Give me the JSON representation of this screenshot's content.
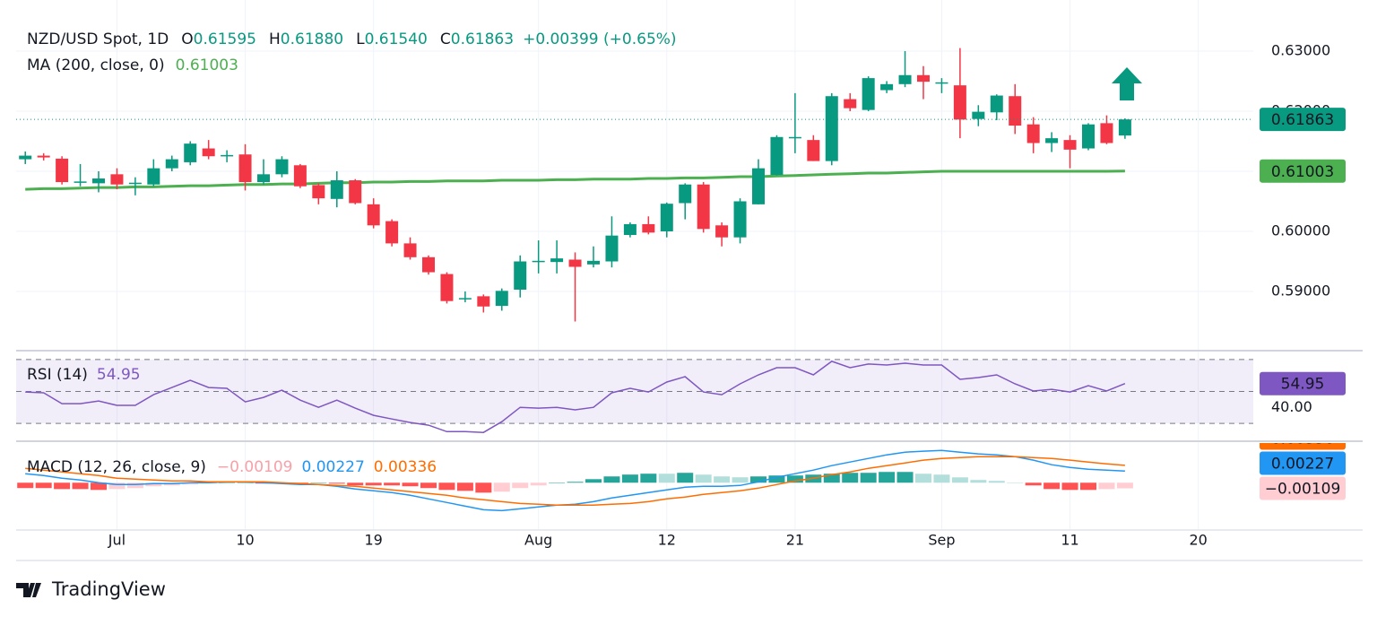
{
  "chart_data": [
    {
      "type": "candlestick",
      "title": "NZD/USD Spot, 1D",
      "legend": [
        {
          "key": "O",
          "label": "0.61595"
        },
        {
          "key": "H",
          "label": "0.61880"
        },
        {
          "key": "L",
          "label": "0.61540"
        },
        {
          "key": "C",
          "label": "0.61863"
        }
      ],
      "change": "+0.00399 (+0.65%)",
      "open": [
        0.612,
        0.6126,
        0.6121,
        0.6082,
        0.608,
        0.6095,
        0.608,
        0.6078,
        0.6105,
        0.6115,
        0.6138,
        0.6127,
        0.6128,
        0.6082,
        0.6095,
        0.611,
        0.6077,
        0.6054,
        0.6085,
        0.6045,
        0.6017,
        0.598,
        0.5957,
        0.5929,
        0.5888,
        0.5892,
        0.5876,
        0.5903,
        0.5951,
        0.5949,
        0.5953,
        0.5945,
        0.595,
        0.5994,
        0.6012,
        0.6,
        0.6047,
        0.6078,
        0.601,
        0.599,
        0.6045,
        0.6094,
        0.6156,
        0.6152,
        0.6117,
        0.622,
        0.6202,
        0.6235,
        0.6245,
        0.626,
        0.6247,
        0.6243,
        0.6187,
        0.6198,
        0.6225,
        0.6178,
        0.6147,
        0.6152,
        0.6138,
        0.618,
        0.61595
      ],
      "high": [
        0.6133,
        0.613,
        0.6125,
        0.6112,
        0.61,
        0.6105,
        0.609,
        0.612,
        0.6126,
        0.615,
        0.6152,
        0.6135,
        0.6145,
        0.612,
        0.6125,
        0.6112,
        0.608,
        0.61,
        0.6087,
        0.6055,
        0.602,
        0.599,
        0.596,
        0.5932,
        0.59,
        0.5895,
        0.5905,
        0.596,
        0.5985,
        0.5985,
        0.5965,
        0.5975,
        0.6025,
        0.6015,
        0.6025,
        0.6048,
        0.608,
        0.6082,
        0.6015,
        0.6055,
        0.612,
        0.616,
        0.623,
        0.616,
        0.623,
        0.623,
        0.6258,
        0.625,
        0.63,
        0.6275,
        0.6255,
        0.6305,
        0.621,
        0.6228,
        0.6245,
        0.619,
        0.6165,
        0.616,
        0.618,
        0.6193,
        0.6188
      ],
      "low": [
        0.6112,
        0.6118,
        0.6078,
        0.6075,
        0.6065,
        0.607,
        0.606,
        0.6075,
        0.61,
        0.611,
        0.612,
        0.6115,
        0.6068,
        0.6078,
        0.609,
        0.6072,
        0.6045,
        0.604,
        0.6045,
        0.6005,
        0.5975,
        0.5953,
        0.5928,
        0.588,
        0.5882,
        0.5865,
        0.5868,
        0.589,
        0.593,
        0.593,
        0.585,
        0.594,
        0.594,
        0.599,
        0.5995,
        0.599,
        0.602,
        0.5998,
        0.5975,
        0.598,
        0.6045,
        0.6093,
        0.613,
        0.6117,
        0.611,
        0.62,
        0.62,
        0.623,
        0.624,
        0.622,
        0.623,
        0.6155,
        0.6175,
        0.6185,
        0.6162,
        0.613,
        0.6132,
        0.6105,
        0.6135,
        0.6145,
        0.6154
      ],
      "close": [
        0.6126,
        0.6123,
        0.6082,
        0.6083,
        0.6088,
        0.6078,
        0.6081,
        0.6105,
        0.612,
        0.6146,
        0.6125,
        0.6127,
        0.6082,
        0.6095,
        0.612,
        0.6075,
        0.6055,
        0.6085,
        0.6047,
        0.601,
        0.598,
        0.5957,
        0.5932,
        0.5884,
        0.5889,
        0.5875,
        0.5901,
        0.595,
        0.5951,
        0.5955,
        0.5941,
        0.5951,
        0.5993,
        0.6012,
        0.5998,
        0.6046,
        0.6078,
        0.6004,
        0.599,
        0.605,
        0.6105,
        0.6157,
        0.6157,
        0.6117,
        0.6225,
        0.6205,
        0.6255,
        0.6245,
        0.626,
        0.6249,
        0.6248,
        0.6186,
        0.6199,
        0.6226,
        0.6176,
        0.6147,
        0.6155,
        0.6136,
        0.6178,
        0.6147,
        0.61863
      ],
      "up_color": "#089981",
      "down_color": "#f23645",
      "ma": {
        "name": "MA (200, close, 0)",
        "color": "#4caf50",
        "values": [
          0.607,
          0.6071,
          0.6071,
          0.6072,
          0.6073,
          0.6073,
          0.6074,
          0.6074,
          0.6075,
          0.6076,
          0.6076,
          0.6077,
          0.6078,
          0.6078,
          0.6079,
          0.6079,
          0.608,
          0.6081,
          0.6081,
          0.6082,
          0.6082,
          0.6083,
          0.6083,
          0.6084,
          0.6084,
          0.6084,
          0.6085,
          0.6085,
          0.6085,
          0.6086,
          0.6086,
          0.6087,
          0.6087,
          0.6087,
          0.6088,
          0.6088,
          0.6089,
          0.6089,
          0.609,
          0.6091,
          0.6091,
          0.6092,
          0.6093,
          0.6094,
          0.6095,
          0.6096,
          0.6097,
          0.6097,
          0.6098,
          0.6099,
          0.61,
          0.61,
          0.61,
          0.61,
          0.61,
          0.61,
          0.61,
          0.61,
          0.61,
          0.61,
          0.61003
        ]
      },
      "ylim": [
        0.5803,
        0.6385
      ],
      "yticks": [
        {
          "value": 0.59,
          "label": "0.59000"
        },
        {
          "value": 0.6,
          "label": "0.60000"
        },
        {
          "value": 0.61,
          "label": "0.61000"
        },
        {
          "value": 0.62,
          "label": "0.62000"
        },
        {
          "value": 0.63,
          "label": "0.63000"
        }
      ],
      "xlim": [
        -0.5,
        67
      ],
      "xticks": [
        {
          "value": 5,
          "label": "Jul"
        },
        {
          "value": 12,
          "label": "10"
        },
        {
          "value": 19,
          "label": "19"
        },
        {
          "value": 28,
          "label": "Aug"
        },
        {
          "value": 35,
          "label": "12"
        },
        {
          "value": 42,
          "label": "21"
        },
        {
          "value": 50,
          "label": "Sep"
        },
        {
          "value": 57,
          "label": "11"
        },
        {
          "value": 64,
          "label": "20"
        }
      ],
      "grid": true
    },
    {
      "type": "line",
      "name": "RSI (14)",
      "color": "#7e57c2",
      "values": [
        49.7,
        49.2,
        42.4,
        42.4,
        44.1,
        41.3,
        41.3,
        48,
        52.5,
        57,
        52.5,
        52,
        43.5,
        46.3,
        50.8,
        44.6,
        40.1,
        44.6,
        39.6,
        35.1,
        32.8,
        30.6,
        28.9,
        24.9,
        24.9,
        24.4,
        31.1,
        40.1,
        39.6,
        40.1,
        38.5,
        40.1,
        49.2,
        52,
        49.7,
        55.9,
        59.3,
        49.7,
        48,
        54.8,
        60.4,
        64.9,
        64.9,
        60.4,
        68.9,
        64.9,
        67.2,
        66.6,
        67.7,
        66.6,
        66.6,
        57.6,
        58.7,
        60.4,
        54.8,
        50.3,
        51.4,
        49.7,
        53.7,
        50.3,
        54.95
      ],
      "ylim": [
        20,
        75
      ],
      "yticks": [
        {
          "value": 40,
          "label": "40.00"
        }
      ],
      "bands": [
        70,
        50,
        30
      ]
    },
    {
      "type": "macd",
      "title": "MACD (12, 26, close, 9)",
      "macd": {
        "color": "#2196f3",
        "values": [
          0.00175,
          0.0014,
          0.00087,
          0.00052,
          0,
          -0.00035,
          -0.00035,
          -0.00017,
          -0.00017,
          0,
          0,
          0.00017,
          0.00017,
          0,
          -0.00017,
          -0.00035,
          -0.00035,
          -0.0007,
          -0.00122,
          -0.00157,
          -0.00192,
          -0.00244,
          -0.00314,
          -0.00384,
          -0.00454,
          -0.00524,
          -0.00541,
          -0.00506,
          -0.00471,
          -0.00436,
          -0.00419,
          -0.00367,
          -0.00297,
          -0.00244,
          -0.00192,
          -0.0014,
          -0.00087,
          -0.0007,
          -0.0007,
          -0.00052,
          0.00017,
          0.00105,
          0.00175,
          0.00244,
          0.00332,
          0.00402,
          0.00471,
          0.00541,
          0.00593,
          0.00611,
          0.00628,
          0.00593,
          0.00559,
          0.00541,
          0.00506,
          0.00437,
          0.00349,
          0.00297,
          0.00262,
          0.00244,
          0.00227
        ]
      },
      "signal": {
        "color": "#ff6d00",
        "values": [
          0.00279,
          0.00244,
          0.0021,
          0.00175,
          0.0014,
          0.00087,
          0.0007,
          0.00052,
          0.00035,
          0.00035,
          0.00017,
          0.00017,
          0.00017,
          0.00017,
          0,
          -0.00017,
          -0.00035,
          -0.00052,
          -0.0007,
          -0.00105,
          -0.0014,
          -0.00175,
          -0.0021,
          -0.00244,
          -0.00297,
          -0.00332,
          -0.00367,
          -0.00402,
          -0.00419,
          -0.00436,
          -0.00436,
          -0.00436,
          -0.00419,
          -0.00402,
          -0.00367,
          -0.00314,
          -0.00279,
          -0.00227,
          -0.00192,
          -0.00157,
          -0.00105,
          -0.00035,
          0.00035,
          0.00087,
          0.00157,
          0.0021,
          0.00279,
          0.00332,
          0.00384,
          0.00437,
          0.00471,
          0.00489,
          0.00506,
          0.00506,
          0.00506,
          0.00489,
          0.00471,
          0.00437,
          0.00402,
          0.00367,
          0.00336
        ]
      },
      "histogram": {
        "colors": [
          "#26a69a",
          "#b2dfdb",
          "#ff5252",
          "#ffcdd2"
        ],
        "values": [
          -0.00104,
          -0.00104,
          -0.00123,
          -0.00123,
          -0.0014,
          -0.00122,
          -0.00105,
          -0.00069,
          -0.00052,
          -0.00035,
          -0.00017,
          0,
          0,
          -0.00017,
          -0.00017,
          -0.00018,
          0,
          -0.00018,
          -0.00052,
          -0.00052,
          -0.00052,
          -0.00069,
          -0.00104,
          -0.0014,
          -0.00157,
          -0.00192,
          -0.00174,
          -0.00104,
          -0.00052,
          0,
          0.00017,
          0.00069,
          0.00122,
          0.00158,
          0.00175,
          0.00174,
          0.00192,
          0.00157,
          0.00122,
          0.00105,
          0.00122,
          0.0014,
          0.0014,
          0.00157,
          0.00175,
          0.00192,
          0.00192,
          0.00209,
          0.00209,
          0.00174,
          0.00157,
          0.00104,
          0.00053,
          0.00035,
          0,
          -0.00052,
          -0.00122,
          -0.0014,
          -0.0014,
          -0.00123,
          -0.00109
        ],
        "value_labels": {
          "60": "−0.00109"
        }
      },
      "ylim": [
        -0.009,
        0.0077
      ]
    }
  ],
  "branding": "TradingView"
}
